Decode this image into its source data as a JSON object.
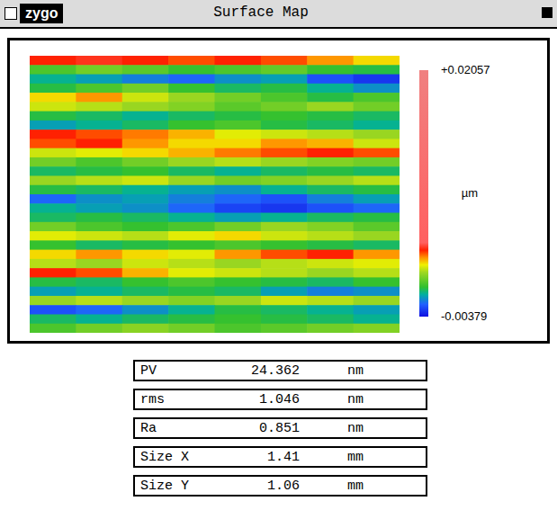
{
  "window": {
    "logo": "zygo",
    "title": "Surface Map"
  },
  "chart_data": {
    "type": "heatmap",
    "tick_labels": false,
    "cells": [
      [
        0.0028,
        0.003,
        0.0028,
        0.0025,
        0.0028,
        0.0025,
        0.002,
        0.0015
      ],
      [
        -0.0005,
        0,
        -0.0003,
        -0.0008,
        -0.0005,
        -0.0002,
        -0.0008,
        -0.001
      ],
      [
        -0.0015,
        -0.0018,
        -0.0022,
        -0.0025,
        -0.002,
        -0.0018,
        -0.0028,
        -0.0032
      ],
      [
        -0.001,
        -0.0005,
        0,
        -0.0008,
        -0.0012,
        -0.001,
        -0.0015,
        -0.002
      ],
      [
        0.0015,
        0.002,
        0.001,
        0.0005,
        0,
        -0.0005,
        -0.001,
        -0.0005
      ],
      [
        0.001,
        0.0008,
        0.0005,
        0.0002,
        -0.0003,
        0,
        0.0005,
        0
      ],
      [
        -0.001,
        -0.0012,
        -0.0015,
        -0.0012,
        -0.001,
        -0.0008,
        -0.001,
        -0.0012
      ],
      [
        -0.0018,
        -0.0015,
        -0.0012,
        -0.0008,
        -0.0005,
        -0.001,
        -0.0012,
        -0.0015
      ],
      [
        0.0028,
        0.0025,
        0.0022,
        0.0018,
        0.0012,
        0.001,
        0.0008,
        0.0005
      ],
      [
        0.0025,
        0.0028,
        0.002,
        0.0015,
        0.0015,
        0.002,
        0.0018,
        0.001
      ],
      [
        0.001,
        0.0012,
        0.0015,
        0.0018,
        0.0022,
        0.0025,
        0.0028,
        0.0025
      ],
      [
        0,
        -0.0005,
        0,
        0.0005,
        0.0008,
        0.0005,
        0.0002,
        0
      ],
      [
        -0.0012,
        -0.001,
        -0.0008,
        -0.0012,
        -0.0015,
        -0.0012,
        -0.001,
        -0.0012
      ],
      [
        0.0005,
        0.0008,
        0.001,
        0.0005,
        0,
        0.0002,
        0.0005,
        0.0008
      ],
      [
        -0.001,
        -0.0012,
        -0.0015,
        -0.0018,
        -0.002,
        -0.0015,
        -0.0012,
        -0.001
      ],
      [
        -0.0025,
        -0.002,
        -0.0018,
        -0.0022,
        -0.0025,
        -0.0028,
        -0.0022,
        -0.0018
      ],
      [
        -0.0015,
        -0.0018,
        -0.002,
        -0.0025,
        -0.003,
        -0.0032,
        -0.0028,
        -0.0025
      ],
      [
        -0.0012,
        -0.001,
        -0.0012,
        -0.0015,
        -0.0018,
        -0.0015,
        -0.0012,
        -0.001
      ],
      [
        0,
        -0.0005,
        -0.0008,
        -0.0005,
        0,
        0.0005,
        0.0002,
        -0.0003
      ],
      [
        0.0012,
        0.001,
        0.0008,
        0.0012,
        0.0015,
        0.001,
        0.0008,
        0.0005
      ],
      [
        -0.0008,
        -0.0012,
        -0.001,
        -0.0008,
        -0.0005,
        -0.0008,
        -0.001,
        -0.0012
      ],
      [
        0.0015,
        0.002,
        0.0015,
        0.0012,
        0.002,
        0.0025,
        0.0028,
        0.002
      ],
      [
        0.0008,
        0.0005,
        0.001,
        0.0008,
        0.0005,
        0.0008,
        0.001,
        0.0012
      ],
      [
        0.0028,
        0.0025,
        0.0018,
        0.0012,
        0.001,
        0.0008,
        0.0005,
        0.0008
      ],
      [
        -0.001,
        -0.0012,
        -0.0008,
        -0.0005,
        -0.0008,
        -0.001,
        -0.0012,
        -0.0008
      ],
      [
        -0.0018,
        -0.0015,
        -0.0012,
        -0.001,
        -0.0012,
        -0.0018,
        -0.0022,
        -0.002
      ],
      [
        0.0005,
        0.0008,
        0.0005,
        0.0002,
        0.0005,
        0.001,
        0.0008,
        0.0005
      ],
      [
        -0.0028,
        -0.0025,
        -0.002,
        -0.0015,
        -0.001,
        -0.0012,
        -0.0015,
        -0.0018
      ],
      [
        -0.0012,
        -0.0015,
        -0.0012,
        -0.001,
        -0.0008,
        -0.001,
        -0.0012,
        -0.0015
      ],
      [
        -0.0005,
        0,
        0.0003,
        0,
        -0.0005,
        -0.0003,
        0,
        0.0002
      ]
    ],
    "colorbar": {
      "range": [
        -0.00379,
        0.02057
      ],
      "ticks": [
        {
          "value": 0.02057,
          "label": "+0.02057"
        },
        -0.00379
      ],
      "label": "µm"
    }
  },
  "table": {
    "rows": [
      [
        "PV",
        "24.362",
        "nm"
      ],
      [
        "rms",
        "1.046",
        "nm"
      ],
      [
        "Ra",
        "0.851",
        "nm"
      ],
      [
        "Size X",
        "1.41",
        "mm"
      ],
      [
        "Size Y",
        "1.06",
        "mm"
      ]
    ]
  }
}
